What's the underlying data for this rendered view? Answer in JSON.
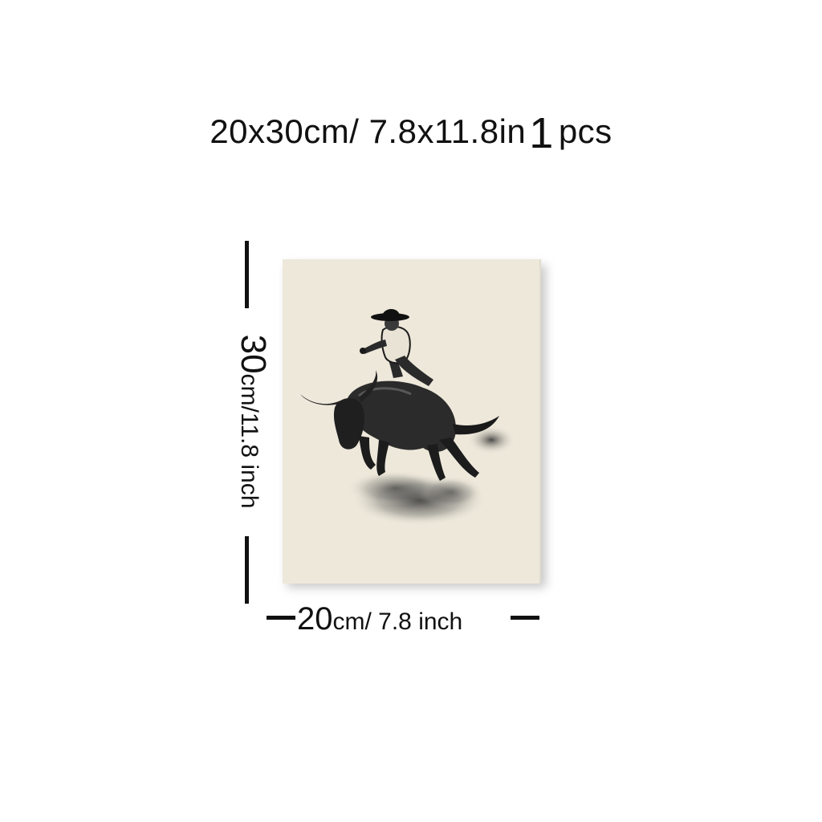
{
  "headline": {
    "dimensions": "20x30cm/ 7.8x11.8in",
    "quantity_number": "1",
    "quantity_unit": "pcs"
  },
  "height_label": {
    "value": "30",
    "unit": "cm/11.8 inch"
  },
  "width_label": {
    "value": "20",
    "unit": "cm/ 7.8 inch"
  },
  "artwork": {
    "subject": "cowboy riding bucking bull, monochrome sketch",
    "background_color": "#ede8da",
    "ink_color": "#1a1a1a"
  }
}
